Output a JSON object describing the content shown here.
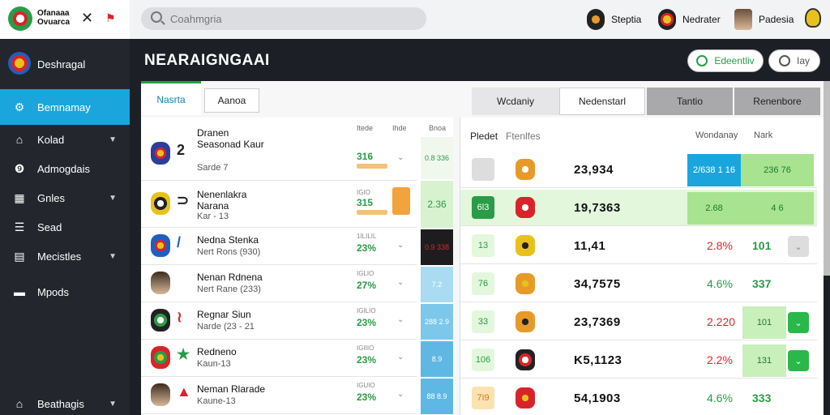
{
  "topbar": {
    "brand_text": "Ofanaaa Ovuarca",
    "search_placeholder": "Coahmgria",
    "users": [
      {
        "name": "Steptia",
        "icon": "club-badge-icon"
      },
      {
        "name": "Nedrater",
        "icon": "club-badge-icon"
      },
      {
        "name": "Padesia",
        "icon": "avatar-icon"
      }
    ]
  },
  "sidebar": {
    "club_name": "Deshragal",
    "active": "Bemnamay",
    "items": [
      {
        "label": "Kolad",
        "icon": "home-icon",
        "chevron": true
      },
      {
        "label": "Admogdais",
        "icon": "info-icon",
        "chevron": false
      },
      {
        "label": "Gnles",
        "icon": "grid-icon",
        "chevron": true
      },
      {
        "label": "Sead",
        "icon": "list-icon",
        "chevron": false
      },
      {
        "label": "Mecistles",
        "icon": "stats-icon",
        "chevron": true
      },
      {
        "label": "Mpods",
        "icon": "folder-icon",
        "chevron": false
      }
    ],
    "footer": "Beathagis"
  },
  "header": {
    "title": "NEARAIGNGAAI",
    "btn_primary": "Edeentliv",
    "btn_secondary": "Iay"
  },
  "tabs": {
    "left": [
      "Nasrta",
      "Aanoa"
    ],
    "segments": [
      "Wcdaniy",
      "Nedenstarl",
      "Tantio",
      "Renenbore"
    ]
  },
  "list": {
    "head_col1": "Itede",
    "head_col2": "Ihde",
    "rows": [
      {
        "glyph": "2",
        "name": "Dranen Seasonad Kaur",
        "sub": "Sarde 7",
        "small": "",
        "value": "316",
        "bar": true
      },
      {
        "glyph": "⊃",
        "name": "Nenenlakra Narana",
        "sub": "Kar - 13",
        "small": "IGIO",
        "value": "315",
        "bar": true,
        "orange": true
      },
      {
        "glyph": "/",
        "name": "Nedna Stenka",
        "sub": "Nert Rons (930)",
        "small": "1ILILIL",
        "value": "23%",
        "bar": false
      },
      {
        "glyph": " ",
        "name": "Nenan Rdnena",
        "sub": "Nert Rane (233)",
        "small": "IGLIO",
        "value": "27%",
        "bar": false
      },
      {
        "glyph": "≀",
        "name": "Regnar Siun",
        "sub": "Narde (23 - 21",
        "small": "IGILIO",
        "value": "23%",
        "bar": false
      },
      {
        "glyph": "★",
        "name": "Redneno",
        "sub": "Kaun-13",
        "small": "IGIIIO",
        "value": "23%",
        "bar": false
      },
      {
        "glyph": "▲",
        "name": "Neman Rlarade",
        "sub": "Kaune-13",
        "small": "IGUIO",
        "value": "23%",
        "bar": false
      }
    ]
  },
  "scroll_col": {
    "head": "Bnoa",
    "cells": [
      "0.8 336",
      "2.36",
      "0.9 338",
      "7.2",
      "288 2.9",
      "8.9",
      "88 8.9"
    ]
  },
  "table": {
    "head_left": "Pledet",
    "head_sub": "Ftenlfes",
    "head_mid": "Wondanay",
    "head_right": "Nark",
    "rows": [
      {
        "box": "",
        "num": "23,934",
        "pct": "",
        "val": "",
        "hl_left": "2/638 1 16",
        "hl_right": "236 76"
      },
      {
        "box": "6l3",
        "num": "19,7363",
        "pct": "",
        "val": "",
        "hl_left": "2.68",
        "hl_right": "4 6"
      },
      {
        "box": "13",
        "num": "11,41",
        "pct": "2.8%",
        "val": "101",
        "pct_color": "#e0242c"
      },
      {
        "box": "76",
        "num": "34,7575",
        "pct": "4.6%",
        "val": "337",
        "pct_color": "#2a9b48"
      },
      {
        "box": "33",
        "num": "23,7369",
        "pct": "2.220",
        "val": "101",
        "pct_color": "#e0242c"
      },
      {
        "box": "106",
        "num": "K5,1123",
        "pct": "2.2%",
        "val": "131",
        "pct_color": "#e0242c"
      },
      {
        "box": "7I9",
        "num": "54,1903",
        "pct": "4.6%",
        "val": "333",
        "pct_color": "#2a9b48"
      }
    ]
  },
  "colors": {
    "accent_blue": "#1aa6dc",
    "accent_green": "#2a9b48",
    "sidebar_bg": "#23262c",
    "negative": "#e0242c"
  }
}
